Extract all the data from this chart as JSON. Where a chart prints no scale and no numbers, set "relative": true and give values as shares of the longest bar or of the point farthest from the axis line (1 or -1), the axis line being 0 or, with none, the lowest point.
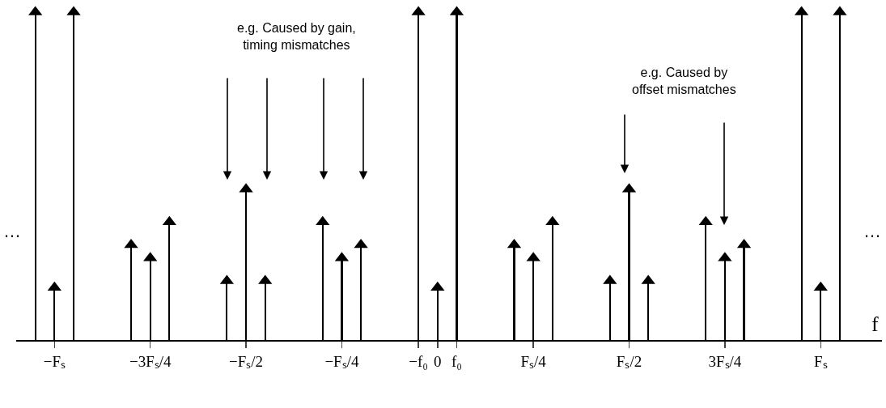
{
  "chart_data": {
    "type": "lollipop",
    "relative": true,
    "marker": "triangle",
    "xlabel": "f",
    "categories": [
      null,
      "−Fₛ",
      null,
      null,
      null,
      null,
      "−3Fₛ/4",
      null,
      null,
      null,
      null,
      "−Fₛ/2",
      null,
      null,
      null,
      null,
      "−Fₛ/4",
      null,
      null,
      null,
      "−f₀",
      "0",
      "f₀",
      null,
      null,
      null,
      "Fₛ/4",
      null,
      null,
      null,
      null,
      "Fₛ/2",
      null,
      null,
      null,
      null,
      "3Fₛ/4",
      null,
      null,
      null,
      null,
      "Fₛ",
      null
    ],
    "series": [
      {
        "color": "#000000",
        "values": [
          1,
          0.16,
          1,
          null,
          null,
          0.29,
          0.25,
          0.36,
          null,
          null,
          0.18,
          0.46,
          0.18,
          null,
          null,
          0.36,
          0.25,
          0.29,
          null,
          null,
          1,
          0.16,
          1,
          null,
          null,
          0.29,
          0.25,
          0.36,
          null,
          null,
          0.18,
          0.46,
          0.18,
          null,
          null,
          0.36,
          0.25,
          0.29,
          null,
          null,
          1,
          0.16,
          1
        ]
      }
    ],
    "annotations": [
      "e.g. Caused by gain,\ntiming mismatches",
      "e.g. Caused by\noffset mismatches",
      "…",
      "…"
    ]
  }
}
